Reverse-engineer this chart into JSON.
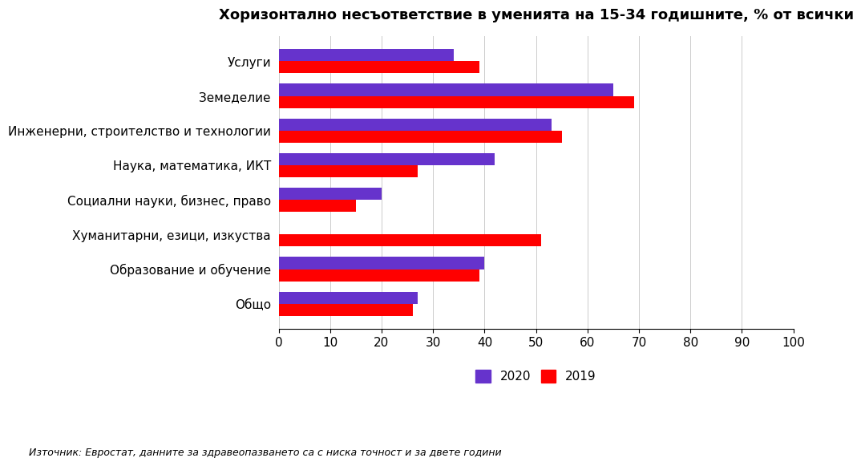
{
  "title": "Хоризонтално несъответствие в уменията на 15-34 годишните, % от всички",
  "footnote": "Източник: Евростат, данните за здравеопазването са с ниска точност и за двете години",
  "categories": [
    "Общо",
    "Образование и обучение",
    "Хуманитарни, езици, изкуства",
    "Социални науки, бизнес, право",
    "Наука, математика, ИКТ",
    "Инженерни, строителство и технологии",
    "Земеделие",
    "Услуги"
  ],
  "values_2020": [
    27,
    40,
    0,
    20,
    42,
    53,
    65,
    34
  ],
  "values_2019": [
    26,
    39,
    51,
    15,
    27,
    55,
    69,
    39
  ],
  "color_2020": "#6633CC",
  "color_2019": "#FF0000",
  "xlim": [
    0,
    100
  ],
  "xticks": [
    0,
    10,
    20,
    30,
    40,
    50,
    60,
    70,
    80,
    90,
    100
  ],
  "legend_2020": "2020",
  "legend_2019": "2019",
  "background_color": "#FFFFFF"
}
